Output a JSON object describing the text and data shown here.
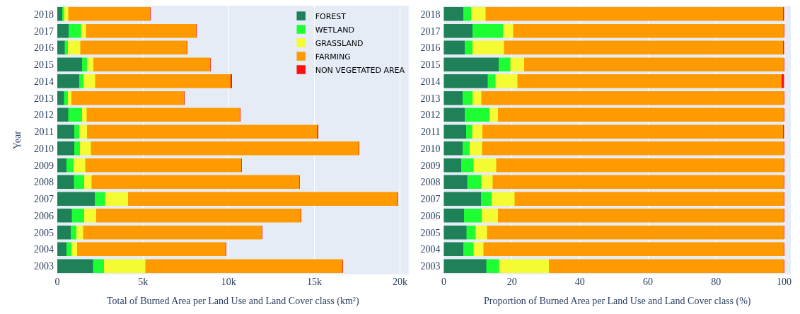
{
  "chart_data": [
    {
      "type": "bar",
      "orientation": "horizontal",
      "stacked": true,
      "xlabel": "Total of Burned Area per Land Use and Land Cover class (km²)",
      "ylabel": "Year",
      "categories": [
        "2018",
        "2017",
        "2016",
        "2015",
        "2014",
        "2013",
        "2012",
        "2011",
        "2010",
        "2009",
        "2008",
        "2007",
        "2006",
        "2005",
        "2004",
        "2003"
      ],
      "series": [
        {
          "name": "FOREST",
          "color": "#1e8158",
          "values": [
            300,
            670,
            450,
            1460,
            1290,
            400,
            660,
            1010,
            1010,
            550,
            980,
            2200,
            850,
            790,
            540,
            2090
          ]
        },
        {
          "name": "WETLAND",
          "color": "#1dff32",
          "values": [
            110,
            730,
            180,
            290,
            250,
            220,
            790,
            280,
            330,
            400,
            590,
            600,
            730,
            330,
            300,
            640
          ]
        },
        {
          "name": "GRASSLAND",
          "color": "#f4fb33",
          "values": [
            250,
            280,
            720,
            370,
            680,
            210,
            270,
            460,
            640,
            700,
            450,
            1330,
            690,
            400,
            320,
            2420
          ]
        },
        {
          "name": "FARMING",
          "color": "#ff9a00",
          "values": [
            4750,
            6430,
            6240,
            6810,
            7900,
            6580,
            8950,
            13430,
            15640,
            9110,
            12110,
            15730,
            11960,
            10420,
            8670,
            11490
          ]
        },
        {
          "name": "NON VEGETATED AREA",
          "color": "#ff1010",
          "values": [
            0,
            0,
            0,
            0,
            60,
            0,
            0,
            30,
            0,
            0,
            0,
            0,
            0,
            0,
            0,
            0
          ]
        }
      ],
      "xlim": [
        0,
        20500
      ],
      "xticks": [
        0,
        {
          "value": 5000,
          "label": "5k"
        },
        {
          "value": 10000,
          "label": "10k"
        },
        {
          "value": 15000,
          "label": "15k"
        },
        {
          "value": 20000,
          "label": "20k"
        }
      ],
      "grid": "x",
      "legend": "top right"
    },
    {
      "type": "bar",
      "orientation": "horizontal",
      "stacked": true,
      "xlabel": "Proportion of Burned Area per Land Use and Land Cover class (%)",
      "categories": [
        "2018",
        "2017",
        "2016",
        "2015",
        "2014",
        "2013",
        "2012",
        "2011",
        "2010",
        "2009",
        "2008",
        "2007",
        "2006",
        "2005",
        "2004",
        "2003"
      ],
      "series": [
        {
          "color": "#1e8158",
          "values": [
            5.8,
            8.5,
            6.2,
            16.2,
            12.9,
            5.6,
            6.2,
            6.6,
            5.6,
            5.1,
            6.9,
            11.0,
            6.0,
            6.7,
            5.8,
            12.5
          ]
        },
        {
          "color": "#1dff32",
          "values": [
            2.3,
            8.9,
            2.3,
            3.4,
            2.3,
            2.9,
            7.3,
            1.8,
            2.0,
            3.7,
            4.2,
            3.1,
            5.2,
            2.7,
            3.0,
            3.8
          ]
        },
        {
          "color": "#f4fb33",
          "values": [
            4.2,
            3.0,
            9.2,
            4.1,
            6.5,
            2.6,
            2.5,
            3.0,
            3.7,
            6.6,
            3.3,
            6.7,
            4.8,
            3.3,
            2.9,
            14.6
          ]
        },
        {
          "color": "#ff9a00",
          "values": [
            87.5,
            79.6,
            82.1,
            76.3,
            77.7,
            88.9,
            84.0,
            88.4,
            88.7,
            84.6,
            85.6,
            79.2,
            84.0,
            87.3,
            88.3,
            69.1
          ]
        },
        {
          "color": "#ff1010",
          "values": [
            0.2,
            0,
            0.2,
            0,
            0.6,
            0,
            0,
            0.2,
            0,
            0,
            0,
            0,
            0,
            0,
            0,
            0
          ]
        }
      ],
      "xlim": [
        0,
        102
      ],
      "xticks": [
        0,
        20,
        40,
        60,
        80,
        100
      ],
      "grid": "x"
    }
  ]
}
